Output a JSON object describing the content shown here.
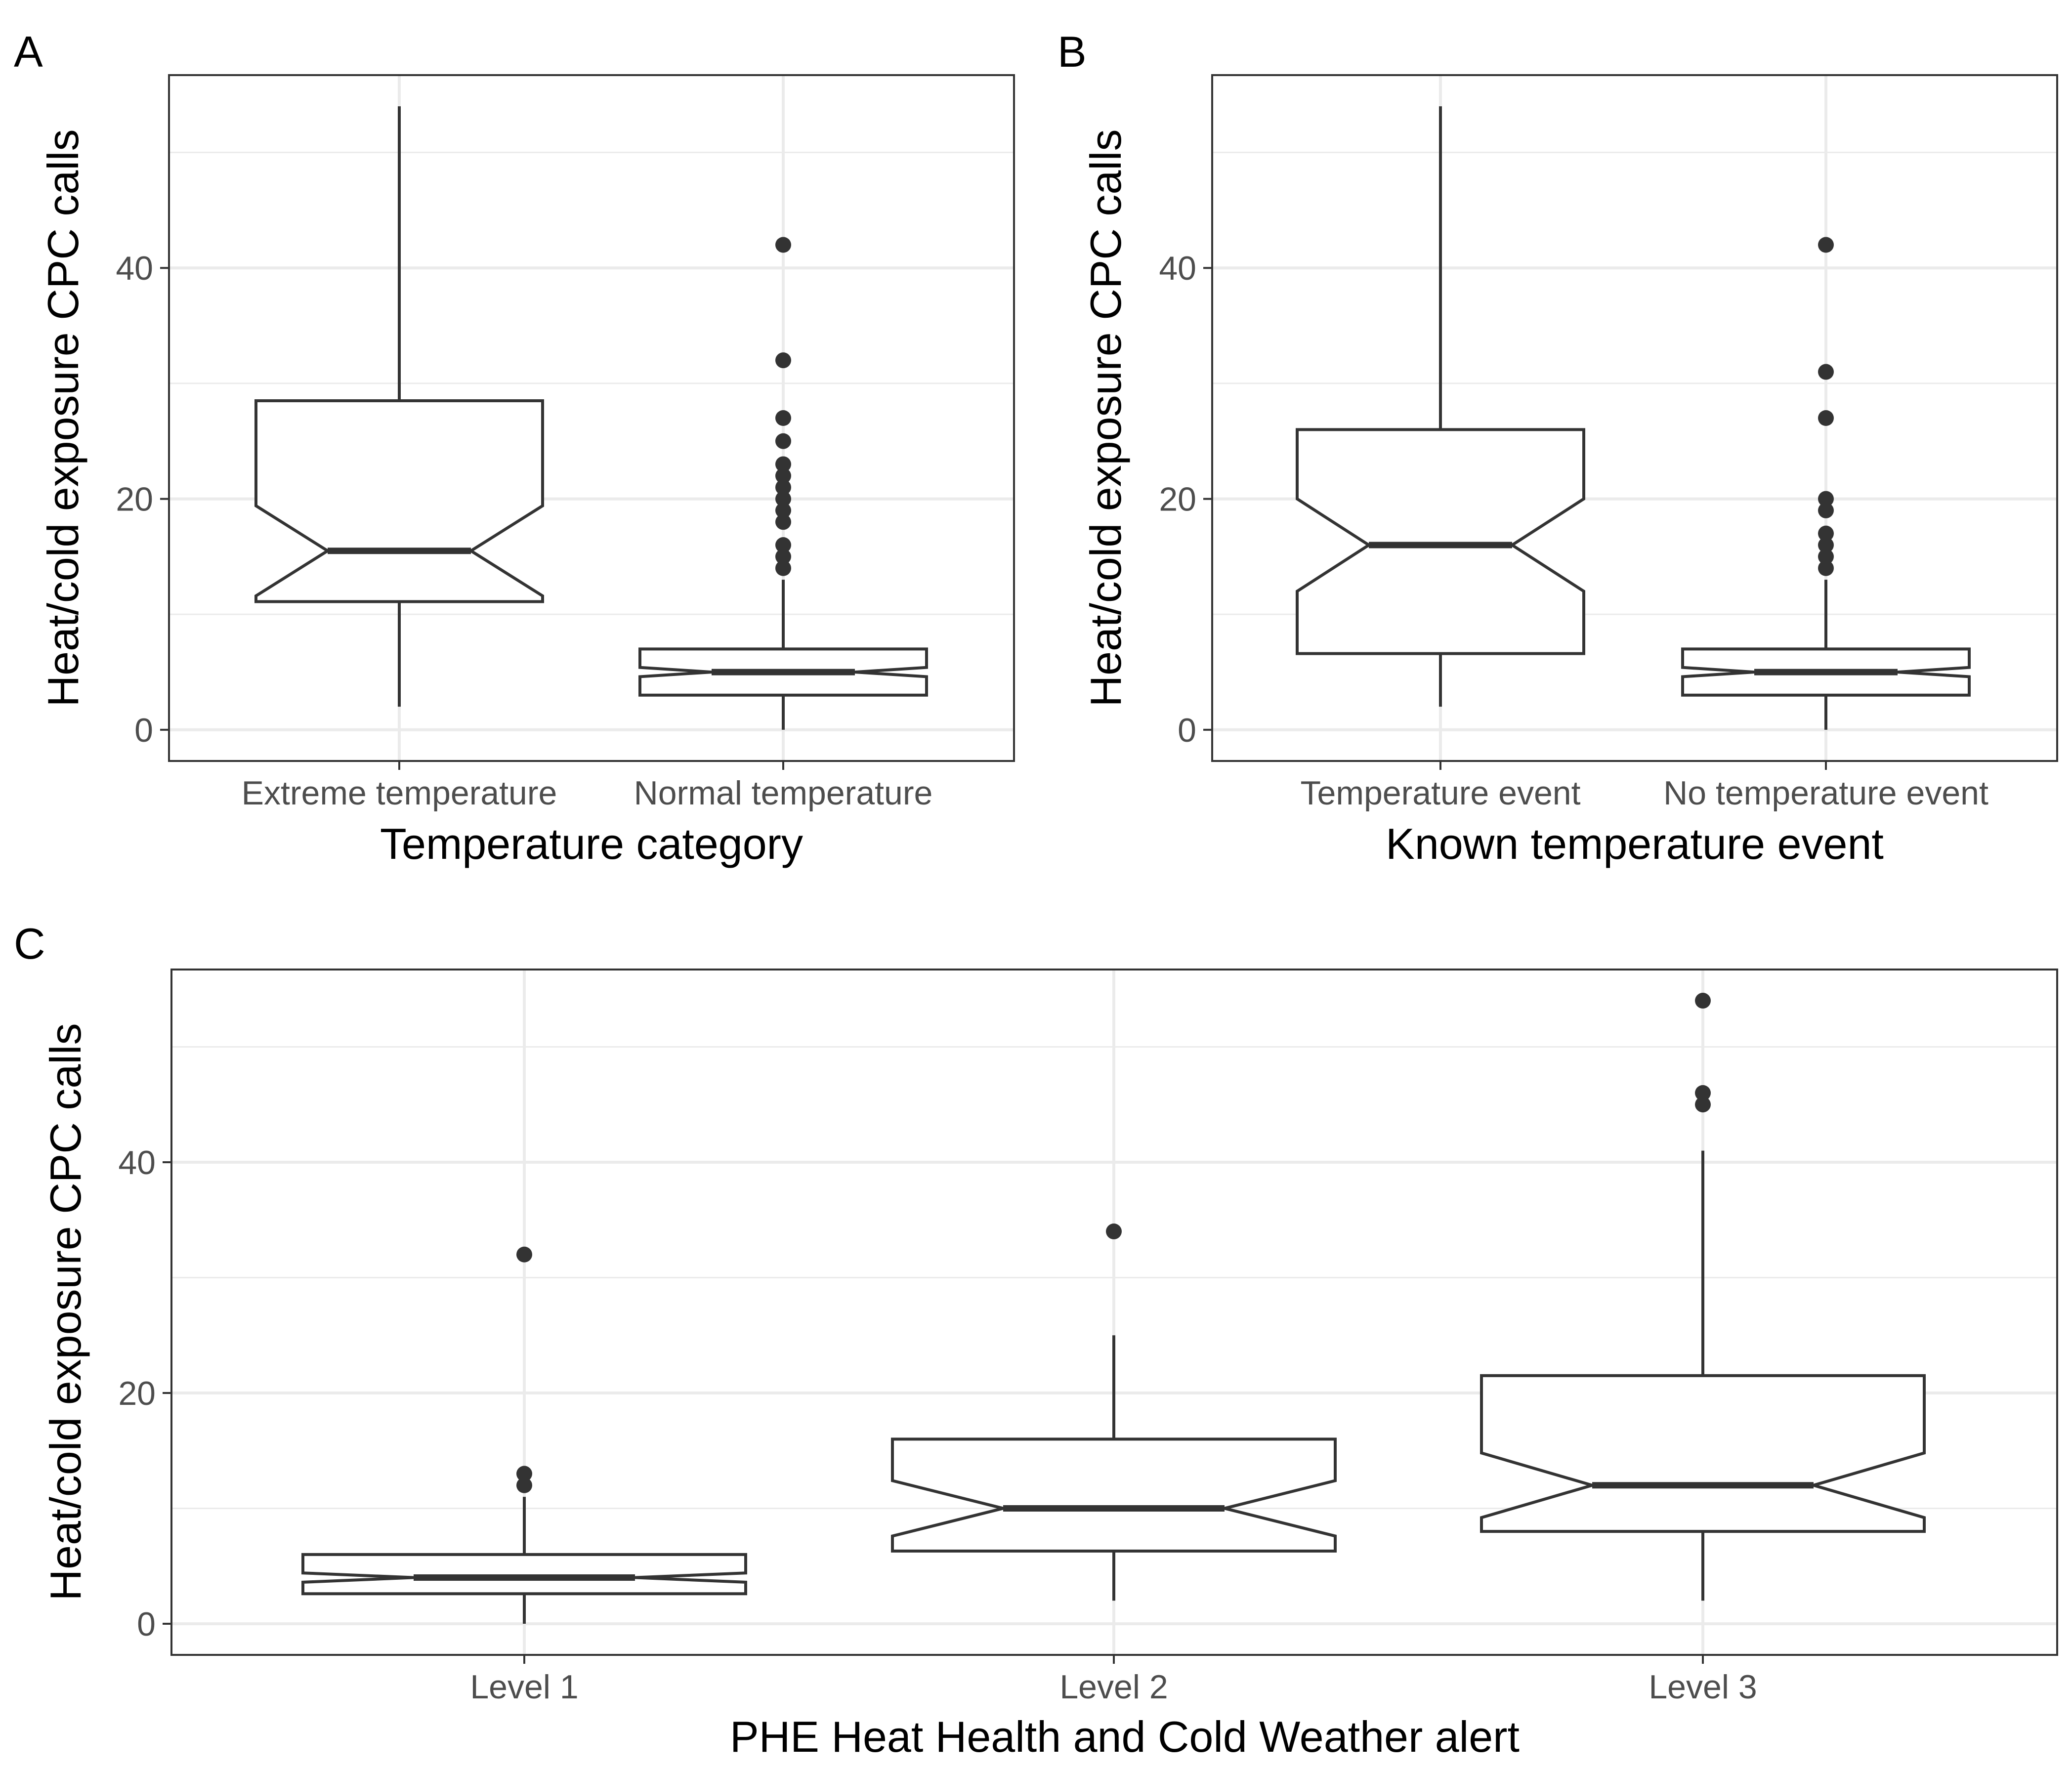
{
  "chart_data": [
    {
      "panel": "A",
      "type": "boxplot",
      "notched": true,
      "xlabel": "Temperature category",
      "ylabel": "Heat/cold exposure CPC calls",
      "yticks": [
        0,
        20,
        40
      ],
      "ylim": [
        -2.7,
        56.7
      ],
      "grid": true,
      "categories": [
        "Extreme temperature",
        "Normal temperature"
      ],
      "boxes": [
        {
          "category": "Extreme temperature",
          "min": 2,
          "q1": 11.1,
          "median": 15.5,
          "q3": 28.5,
          "max": 54,
          "notch_low": 11.6,
          "notch_high": 19.4,
          "outliers": []
        },
        {
          "category": "Normal temperature",
          "min": 0,
          "q1": 3,
          "median": 5,
          "q3": 7,
          "max": 13,
          "notch_low": 4.6,
          "notch_high": 5.4,
          "outliers": [
            14,
            15,
            16,
            18,
            19,
            20,
            21,
            22,
            23,
            25,
            27,
            32,
            42
          ]
        }
      ]
    },
    {
      "panel": "B",
      "type": "boxplot",
      "notched": true,
      "xlabel": "Known temperature event",
      "ylabel": "Heat/cold exposure CPC calls",
      "yticks": [
        0,
        20,
        40
      ],
      "ylim": [
        -2.7,
        56.7
      ],
      "grid": true,
      "categories": [
        "Temperature event",
        "No temperature event"
      ],
      "boxes": [
        {
          "category": "Temperature event",
          "min": 2,
          "q1": 6.6,
          "median": 16,
          "q3": 26,
          "max": 54,
          "notch_low": 12,
          "notch_high": 20,
          "outliers": []
        },
        {
          "category": "No temperature event",
          "min": 0,
          "q1": 3,
          "median": 5,
          "q3": 7,
          "max": 13,
          "notch_low": 4.6,
          "notch_high": 5.4,
          "outliers": [
            14,
            15,
            16,
            17,
            19,
            20,
            27,
            31,
            42
          ]
        }
      ]
    },
    {
      "panel": "C",
      "type": "boxplot",
      "notched": true,
      "xlabel": "PHE Heat Health and Cold Weather alert",
      "ylabel": "Heat/cold exposure CPC calls",
      "yticks": [
        0,
        20,
        40
      ],
      "ylim": [
        -2.7,
        56.7
      ],
      "grid": true,
      "categories": [
        "Level 1",
        "Level 2",
        "Level 3"
      ],
      "boxes": [
        {
          "category": "Level 1",
          "min": 0,
          "q1": 2.6,
          "median": 4,
          "q3": 6,
          "max": 11,
          "notch_low": 3.6,
          "notch_high": 4.4,
          "outliers": [
            12,
            13,
            32
          ]
        },
        {
          "category": "Level 2",
          "min": 2,
          "q1": 6.3,
          "median": 10,
          "q3": 16,
          "max": 25,
          "notch_low": 7.6,
          "notch_high": 12.4,
          "outliers": [
            34
          ]
        },
        {
          "category": "Level 3",
          "min": 2,
          "q1": 8,
          "median": 12,
          "q3": 21.5,
          "max": 41,
          "notch_low": 9.2,
          "notch_high": 14.8,
          "outliers": [
            45,
            46,
            54
          ]
        }
      ]
    }
  ]
}
